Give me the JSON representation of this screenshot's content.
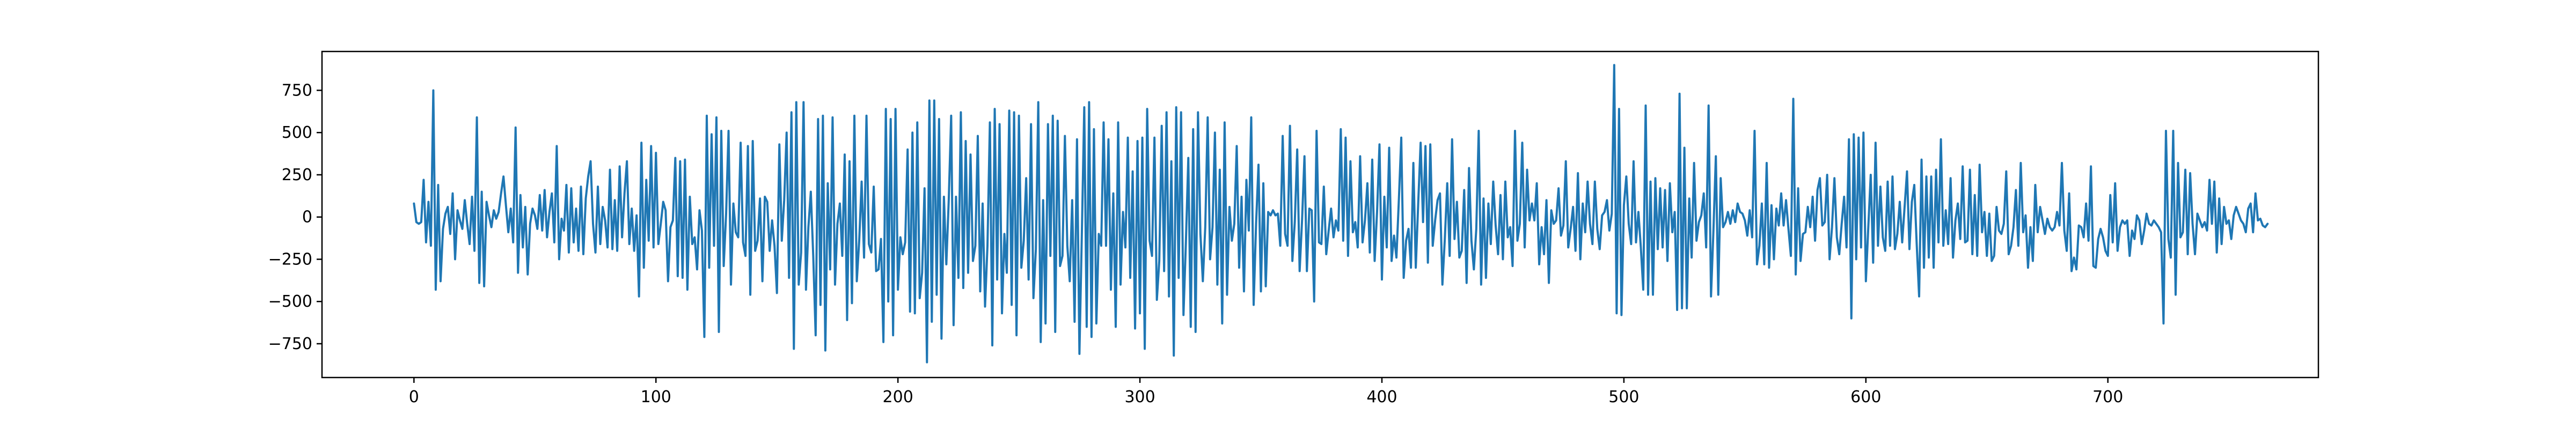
{
  "chart_data": {
    "type": "line",
    "title": "",
    "xlabel": "",
    "ylabel": "",
    "xlim": [
      -38,
      787
    ],
    "ylim": [
      -950,
      980
    ],
    "grid": false,
    "legend": "none",
    "x_ticks": [
      0,
      100,
      200,
      300,
      400,
      500,
      600,
      700
    ],
    "x_tick_labels": [
      "0",
      "100",
      "200",
      "300",
      "400",
      "500",
      "600",
      "700"
    ],
    "y_ticks": [
      750,
      500,
      250,
      0,
      -250,
      -500,
      -750
    ],
    "y_tick_labels": [
      "750",
      "500",
      "250",
      "0",
      "−250",
      "−500",
      "−750"
    ],
    "series": [
      {
        "color": "#1f77b4",
        "x_start": 0,
        "x_step": 1,
        "values": [
          80,
          -30,
          -40,
          -30,
          220,
          -150,
          90,
          -170,
          750,
          -430,
          190,
          -380,
          -70,
          20,
          60,
          -100,
          140,
          -250,
          40,
          -20,
          -70,
          100,
          -40,
          -160,
          120,
          -200,
          590,
          -390,
          150,
          -410,
          90,
          10,
          -60,
          40,
          -10,
          30,
          140,
          240,
          70,
          -90,
          50,
          -150,
          530,
          -330,
          130,
          -180,
          60,
          -340,
          -40,
          50,
          10,
          -70,
          130,
          -80,
          160,
          -120,
          30,
          140,
          -150,
          420,
          -250,
          -10,
          -80,
          190,
          -210,
          170,
          -150,
          50,
          -200,
          180,
          -220,
          110,
          240,
          330,
          -40,
          -210,
          180,
          -160,
          60,
          -20,
          -180,
          280,
          -190,
          100,
          -200,
          300,
          -120,
          140,
          330,
          -160,
          50,
          -200,
          10,
          -470,
          440,
          -300,
          220,
          -140,
          420,
          -180,
          380,
          -160,
          -40,
          90,
          40,
          -380,
          -60,
          -20,
          350,
          -350,
          330,
          -360,
          340,
          -430,
          120,
          -160,
          -120,
          -310,
          40,
          -80,
          -710,
          600,
          -300,
          490,
          -170,
          590,
          -680,
          510,
          -290,
          20,
          510,
          -400,
          80,
          -90,
          -120,
          440,
          -150,
          -230,
          420,
          -460,
          450,
          -200,
          -140,
          110,
          -380,
          120,
          90,
          -200,
          -20,
          -170,
          -450,
          430,
          -140,
          100,
          500,
          -360,
          620,
          -780,
          680,
          -400,
          -210,
          680,
          -430,
          -60,
          150,
          -230,
          -700,
          580,
          -520,
          600,
          -790,
          200,
          -310,
          590,
          -400,
          -40,
          80,
          -230,
          370,
          -610,
          330,
          -510,
          600,
          -380,
          -140,
          210,
          -240,
          600,
          -160,
          -210,
          180,
          -320,
          -310,
          -130,
          -740,
          640,
          -500,
          580,
          -700,
          640,
          -430,
          -120,
          -220,
          -150,
          400,
          -560,
          500,
          -570,
          560,
          -480,
          -330,
          170,
          -860,
          690,
          -620,
          690,
          -460,
          580,
          -720,
          120,
          -280,
          100,
          600,
          -640,
          120,
          -360,
          620,
          -420,
          450,
          -330,
          370,
          -260,
          -170,
          480,
          -440,
          80,
          -530,
          -170,
          560,
          -760,
          640,
          -370,
          550,
          -570,
          -100,
          -330,
          630,
          -520,
          620,
          -700,
          600,
          -300,
          -140,
          230,
          -370,
          550,
          -480,
          -190,
          680,
          -740,
          100,
          -630,
          550,
          -230,
          600,
          -680,
          570,
          -290,
          -230,
          480,
          -170,
          -380,
          100,
          -620,
          460,
          -810,
          -100,
          650,
          -650,
          680,
          -710,
          520,
          -630,
          -100,
          -170,
          560,
          -170,
          460,
          -430,
          140,
          -650,
          560,
          -400,
          30,
          -180,
          470,
          -360,
          270,
          -660,
          450,
          -570,
          470,
          -780,
          640,
          -140,
          -230,
          470,
          -490,
          -260,
          540,
          -320,
          620,
          -470,
          330,
          -820,
          650,
          -360,
          620,
          -580,
          -150,
          350,
          -650,
          520,
          -680,
          620,
          -100,
          -380,
          -60,
          590,
          -250,
          -60,
          500,
          -400,
          280,
          -630,
          560,
          -460,
          60,
          -140,
          -40,
          420,
          -300,
          120,
          -440,
          220,
          -80,
          590,
          -520,
          -40,
          310,
          -440,
          200,
          -410,
          30,
          10,
          40,
          10,
          20,
          -170,
          480,
          -100,
          -170,
          540,
          -260,
          -30,
          400,
          -320,
          -20,
          360,
          -320,
          50,
          40,
          -500,
          510,
          -150,
          -160,
          180,
          -220,
          -80,
          50,
          -120,
          -20,
          -80,
          520,
          -140,
          470,
          -230,
          330,
          -90,
          -30,
          -180,
          360,
          -150,
          -20,
          200,
          -210,
          340,
          -260,
          30,
          430,
          -370,
          120,
          -180,
          410,
          -260,
          -110,
          -240,
          100,
          470,
          -360,
          -140,
          -70,
          -300,
          320,
          -300,
          80,
          440,
          -30,
          420,
          -270,
          430,
          -170,
          -20,
          100,
          140,
          -400,
          -130,
          200,
          -230,
          460,
          -130,
          90,
          -240,
          -200,
          160,
          -390,
          290,
          -140,
          -310,
          -70,
          510,
          -400,
          110,
          -360,
          80,
          -160,
          210,
          -50,
          -220,
          130,
          -250,
          210,
          -120,
          -60,
          -290,
          510,
          -140,
          -40,
          440,
          -180,
          280,
          -20,
          80,
          -20,
          200,
          -280,
          -60,
          -220,
          100,
          -390,
          40,
          -40,
          -20,
          170,
          -110,
          -50,
          330,
          -180,
          -70,
          60,
          -200,
          260,
          -250,
          80,
          -90,
          210,
          -40,
          -160,
          210,
          -70,
          -190,
          10,
          30,
          100,
          -80,
          20,
          900,
          -570,
          640,
          -580,
          70,
          240,
          -40,
          -160,
          330,
          -150,
          30,
          -180,
          -430,
          660,
          -460,
          210,
          -460,
          230,
          -190,
          170,
          -180,
          160,
          -260,
          200,
          -90,
          30,
          -550,
          730,
          -540,
          410,
          -540,
          110,
          -240,
          320,
          -140,
          -30,
          10,
          140,
          -180,
          660,
          -470,
          -80,
          360,
          -460,
          230,
          -60,
          -30,
          30,
          -40,
          40,
          -30,
          80,
          30,
          20,
          -20,
          -110,
          40,
          -120,
          510,
          -280,
          -170,
          80,
          -280,
          320,
          -300,
          70,
          -250,
          50,
          -50,
          140,
          -50,
          100,
          -70,
          -230,
          700,
          -340,
          170,
          -260,
          -100,
          -90,
          60,
          -60,
          120,
          -140,
          160,
          230,
          -50,
          -30,
          250,
          -250,
          -60,
          230,
          -120,
          -220,
          -40,
          120,
          -180,
          460,
          -600,
          490,
          -250,
          470,
          -180,
          500,
          -380,
          -60,
          250,
          -270,
          440,
          -170,
          180,
          -120,
          -200,
          210,
          -170,
          240,
          -190,
          -100,
          90,
          -150,
          60,
          270,
          -190,
          90,
          190,
          -160,
          -470,
          340,
          -300,
          240,
          -240,
          240,
          -300,
          280,
          -150,
          460,
          -170,
          40,
          -160,
          230,
          -240,
          -20,
          80,
          -130,
          300,
          -150,
          -140,
          280,
          -220,
          130,
          -230,
          310,
          -90,
          30,
          -230,
          20,
          -260,
          -230,
          60,
          -80,
          -100,
          -40,
          270,
          -220,
          -170,
          -60,
          160,
          -170,
          320,
          -90,
          10,
          -300,
          -60,
          -260,
          190,
          -90,
          60,
          -20,
          -100,
          -10,
          -60,
          -80,
          -60,
          30,
          -50,
          320,
          -80,
          -200,
          140,
          -320,
          -240,
          -310,
          -50,
          -60,
          -120,
          80,
          -140,
          300,
          -290,
          -300,
          -130,
          -70,
          -120,
          -200,
          -230,
          130,
          -150,
          200,
          -200,
          -60,
          -20,
          -40,
          -20,
          -230,
          -80,
          -130,
          10,
          -20,
          -160,
          -80,
          20,
          -40,
          -50,
          -20,
          -40,
          -60,
          -90,
          -630,
          510,
          -130,
          -240,
          510,
          -460,
          320,
          -120,
          -90,
          280,
          -220,
          260,
          -40,
          -220,
          20,
          -20,
          -60,
          -30,
          -80,
          220,
          -40,
          210,
          -210,
          110,
          -160,
          60,
          -40,
          -20,
          -130,
          10,
          60,
          20,
          -20,
          -40,
          -90,
          50,
          80,
          -90,
          140,
          -20,
          -10,
          -50,
          -60,
          -40
        ]
      }
    ]
  }
}
